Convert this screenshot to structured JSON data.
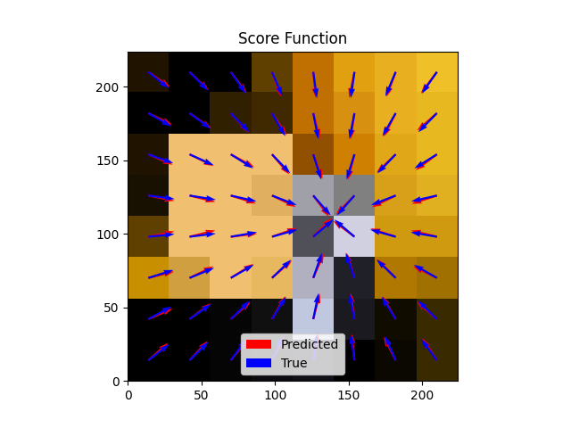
{
  "chart_data": {
    "type": "quiver",
    "title": "Score Function",
    "xlim": [
      0,
      224
    ],
    "ylim": [
      0,
      224
    ],
    "xticks": [
      0,
      50,
      100,
      150,
      200
    ],
    "yticks": [
      0,
      50,
      100,
      150,
      200
    ],
    "legend": "lower center",
    "image": [
      [
        "#000000",
        "#000000",
        "#050505",
        "#0a0a10",
        "#101018",
        "#000000",
        "#0a0800",
        "#3a2a00"
      ],
      [
        "#000000",
        "#000000",
        "#050505",
        "#101010",
        "#c0c8e0",
        "#1a1a20",
        "#100c00",
        "#3a2a00"
      ],
      [
        "#c89000",
        "#d0a040",
        "#f0c070",
        "#e8b860",
        "#b0b0c0",
        "#202028",
        "#b07800",
        "#a07000"
      ],
      [
        "#604000",
        "#f0c070",
        "#f0c070",
        "#f0c070",
        "#505058",
        "#d0d0e0",
        "#d09a10",
        "#d09a10"
      ],
      [
        "#181000",
        "#f0c070",
        "#f0c070",
        "#e0b060",
        "#a0a0a8",
        "#808080",
        "#d8a018",
        "#e0b020"
      ],
      [
        "#201400",
        "#f0c070",
        "#f0c070",
        "#f0c070",
        "#905000",
        "#d08000",
        "#e0a818",
        "#e8b820"
      ],
      [
        "#000000",
        "#000000",
        "#302000",
        "#402800",
        "#c07000",
        "#d89010",
        "#e8b020",
        "#e8b820"
      ],
      [
        "#201400",
        "#000000",
        "#000000",
        "#604000",
        "#c07000",
        "#e0a010",
        "#e8b020",
        "#f0c028"
      ]
    ],
    "x": [
      14,
      42,
      70,
      98,
      126,
      154,
      182,
      210
    ],
    "y": [
      14,
      42,
      70,
      98,
      126,
      154,
      182,
      210
    ],
    "series": [
      {
        "name": "Predicted",
        "color": "red",
        "u": [
          0.75,
          0.68,
          0.62,
          0.45,
          0.2,
          -0.1,
          -0.45,
          -0.55,
          0.92,
          0.8,
          0.75,
          0.5,
          0.25,
          -0.15,
          -0.5,
          -0.75,
          0.97,
          0.9,
          0.85,
          0.75,
          0.4,
          -0.3,
          -0.7,
          -0.9,
          0.98,
          0.97,
          0.99,
          0.94,
          0.7,
          -0.8,
          -0.95,
          -0.97,
          0.98,
          0.97,
          0.95,
          0.9,
          0.6,
          -0.7,
          -0.9,
          -0.95,
          0.92,
          0.9,
          0.88,
          0.65,
          0.35,
          -0.25,
          -0.72,
          -0.8,
          0.9,
          0.82,
          0.68,
          0.55,
          0.25,
          -0.15,
          -0.45,
          -0.75,
          0.82,
          0.72,
          0.6,
          0.35,
          0.1,
          -0.2,
          -0.35,
          -0.6
        ],
        "v": [
          0.66,
          0.73,
          0.78,
          0.89,
          0.98,
          0.99,
          0.89,
          0.83,
          0.4,
          0.6,
          0.66,
          0.87,
          0.97,
          0.99,
          0.87,
          0.66,
          0.24,
          0.44,
          0.53,
          0.66,
          0.92,
          0.95,
          0.71,
          0.44,
          0.2,
          0.24,
          0.12,
          0.33,
          0.71,
          0.6,
          0.31,
          0.24,
          -0.2,
          -0.24,
          -0.3,
          -0.43,
          -0.8,
          -0.71,
          -0.44,
          -0.31,
          -0.39,
          -0.44,
          -0.48,
          -0.76,
          -0.94,
          -0.97,
          -0.69,
          -0.6,
          -0.44,
          -0.57,
          -0.73,
          -0.83,
          -0.97,
          -0.99,
          -0.89,
          -0.66,
          -0.57,
          -0.69,
          -0.8,
          -0.94,
          -0.99,
          -0.98,
          -0.94,
          -0.8
        ]
      },
      {
        "name": "True",
        "color": "blue",
        "u": [
          0.8,
          0.72,
          0.59,
          0.4,
          0.14,
          -0.14,
          -0.4,
          -0.59,
          0.88,
          0.82,
          0.72,
          0.53,
          0.2,
          -0.2,
          -0.53,
          -0.72,
          0.95,
          0.93,
          0.87,
          0.72,
          0.33,
          -0.33,
          -0.72,
          -0.87,
          0.99,
          0.99,
          0.99,
          0.96,
          0.76,
          -0.76,
          -0.96,
          -0.99,
          0.99,
          0.99,
          0.97,
          0.93,
          0.66,
          -0.66,
          -0.93,
          -0.97,
          0.94,
          0.91,
          0.85,
          0.69,
          0.3,
          -0.3,
          -0.69,
          -0.85,
          0.87,
          0.8,
          0.7,
          0.5,
          0.19,
          -0.19,
          -0.5,
          -0.7,
          0.78,
          0.7,
          0.57,
          0.39,
          0.14,
          -0.14,
          -0.39,
          -0.57
        ],
        "v": [
          0.61,
          0.7,
          0.81,
          0.92,
          0.99,
          0.99,
          0.92,
          0.81,
          0.48,
          0.57,
          0.7,
          0.85,
          0.98,
          0.98,
          0.85,
          0.7,
          0.3,
          0.38,
          0.5,
          0.69,
          0.94,
          0.94,
          0.69,
          0.5,
          0.1,
          0.12,
          0.17,
          0.27,
          0.65,
          0.65,
          0.27,
          0.17,
          -0.13,
          -0.16,
          -0.22,
          -0.36,
          -0.75,
          -0.75,
          -0.36,
          -0.22,
          -0.33,
          -0.41,
          -0.53,
          -0.72,
          -0.95,
          -0.95,
          -0.72,
          -0.53,
          -0.5,
          -0.59,
          -0.72,
          -0.87,
          -0.98,
          -0.98,
          -0.87,
          -0.72,
          -0.62,
          -0.71,
          -0.82,
          -0.92,
          -0.99,
          -0.99,
          -0.92,
          -0.82
        ]
      }
    ]
  }
}
